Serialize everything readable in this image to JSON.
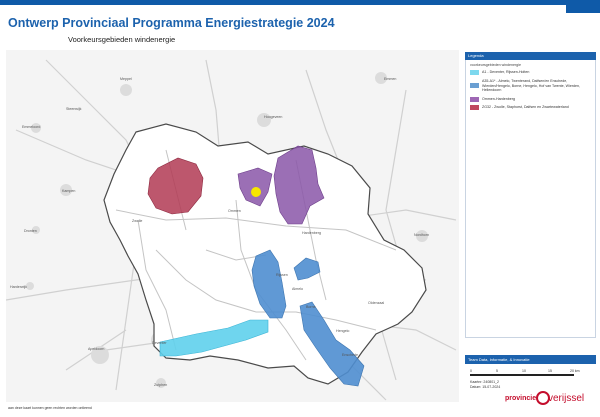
{
  "header": {
    "title": "Ontwerp Provinciaal Programma Energiestrategie 2024",
    "subtitle": "Voorkeursgebieden windenergie"
  },
  "legend": {
    "title": "Legenda",
    "group_label": "voorkeursgebieden windenergie",
    "items": [
      {
        "label": "A1 - Deventer, Rijssen-Holten",
        "color": "#7dd8ee"
      },
      {
        "label": "A35-A1* - Almelo, Twenterand, Dalfsen/en Enschede, Wierden/Hengelo, Borne, Hengelo, Hof van Twente, Wierden, Hellendoorn",
        "color": "#6a9fd2"
      },
      {
        "label": "Ommen-Hardenberg",
        "color": "#9e67b4"
      },
      {
        "label": "ZG32 - Zwolle, Staphorst, Dalfsen en Zwartewaterland",
        "color": "#c0485f"
      }
    ]
  },
  "credits": {
    "header": "Team Data, Informatie, & Innovatie",
    "scale_labels": [
      "0",
      "5",
      "10",
      "15",
      "20 km"
    ],
    "kaartnr": "Kaartnr: 240801_2",
    "datum": "Datum: 15-07-2024"
  },
  "footer": {
    "note": "aan deze kaart kunnen geen rechten worden ontleend"
  },
  "logo": {
    "prefix": "provincie",
    "word": "verijssel"
  },
  "colors": {
    "header_blue": "#0f5aa8",
    "brand_red": "#c40d2c",
    "a1_area": "#5fd0ec",
    "twente_area": "#4f8ed0",
    "ommen_area": "#8a56a8",
    "zwolle_area": "#b13a54",
    "marker_yellow": "#f7e600"
  },
  "map_labels": [
    "Meppel",
    "Steenwijk",
    "Emmen",
    "Emmeloord",
    "Hoogeveen",
    "Kampen",
    "Zwolle",
    "Dronten",
    "Ommen",
    "Hardenberg",
    "Nordhorn",
    "Almelo",
    "Hengelo",
    "Enschede",
    "Oldenzaal",
    "Deventer",
    "Apeldoorn",
    "Harderwijk",
    "Zutphen",
    "Borne",
    "Rijssen"
  ]
}
